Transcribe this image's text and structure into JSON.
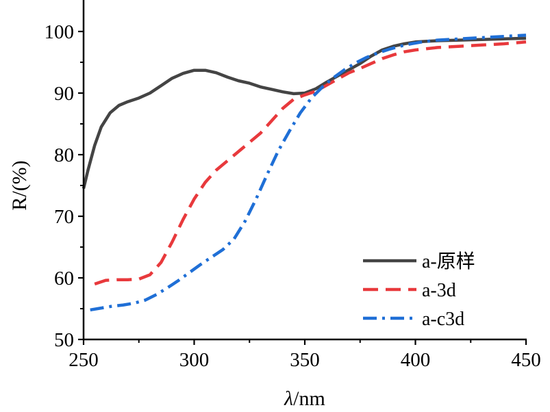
{
  "chart_data": {
    "type": "line",
    "title": "",
    "xlabel": {
      "symbol": "λ",
      "unit": "/nm"
    },
    "ylabel": "R/(%)",
    "xlim": [
      250,
      450
    ],
    "ylim": [
      50,
      105
    ],
    "xticks": [
      250,
      300,
      350,
      400,
      450
    ],
    "yticks": [
      50,
      60,
      70,
      80,
      90,
      100
    ],
    "grid": false,
    "legend_position": "bottom-right",
    "series": [
      {
        "name": "a-原样",
        "color": "#444444",
        "style": "solid",
        "x": [
          250,
          252,
          255,
          258,
          262,
          266,
          270,
          275,
          280,
          285,
          290,
          295,
          300,
          305,
          310,
          315,
          320,
          325,
          330,
          335,
          340,
          345,
          350,
          355,
          360,
          365,
          370,
          375,
          380,
          385,
          390,
          395,
          400,
          410,
          420,
          430,
          440,
          450
        ],
        "y": [
          74.5,
          77.5,
          81.5,
          84.5,
          86.8,
          88.0,
          88.6,
          89.2,
          90.0,
          91.2,
          92.4,
          93.2,
          93.7,
          93.7,
          93.3,
          92.6,
          92.0,
          91.6,
          91.0,
          90.6,
          90.2,
          89.9,
          90.0,
          90.7,
          91.8,
          92.8,
          93.8,
          94.8,
          96.0,
          97.0,
          97.6,
          98.0,
          98.3,
          98.5,
          98.6,
          98.7,
          98.8,
          98.9
        ]
      },
      {
        "name": "a-3d",
        "color": "#e8393c",
        "style": "dashed",
        "x": [
          255,
          260,
          265,
          270,
          275,
          280,
          285,
          290,
          295,
          300,
          305,
          310,
          315,
          320,
          325,
          330,
          335,
          340,
          345,
          350,
          355,
          360,
          365,
          370,
          375,
          380,
          385,
          390,
          395,
          400,
          410,
          420,
          430,
          440,
          450
        ],
        "y": [
          59.0,
          59.6,
          59.7,
          59.7,
          59.8,
          60.5,
          62.5,
          65.8,
          69.5,
          72.8,
          75.5,
          77.5,
          79.0,
          80.5,
          82.0,
          83.5,
          85.5,
          87.5,
          89.0,
          89.7,
          90.3,
          91.3,
          92.3,
          93.3,
          94.0,
          94.8,
          95.6,
          96.2,
          96.7,
          97.0,
          97.4,
          97.6,
          97.8,
          98.0,
          98.3
        ]
      },
      {
        "name": "a-c3d",
        "color": "#1f6fd6",
        "style": "dashdot",
        "x": [
          253,
          258,
          263,
          268,
          273,
          278,
          283,
          288,
          293,
          298,
          303,
          308,
          313,
          318,
          323,
          328,
          333,
          338,
          343,
          348,
          353,
          358,
          363,
          368,
          373,
          378,
          383,
          388,
          393,
          398,
          403,
          410,
          420,
          430,
          440,
          450
        ],
        "y": [
          54.8,
          55.1,
          55.4,
          55.6,
          55.9,
          56.4,
          57.3,
          58.4,
          59.6,
          60.9,
          62.2,
          63.4,
          64.6,
          66.3,
          69.2,
          72.8,
          76.8,
          80.6,
          83.8,
          86.8,
          89.2,
          91.0,
          92.5,
          93.8,
          94.9,
          95.8,
          96.5,
          97.1,
          97.6,
          98.0,
          98.3,
          98.6,
          98.8,
          99.0,
          99.2,
          99.4
        ]
      }
    ]
  }
}
